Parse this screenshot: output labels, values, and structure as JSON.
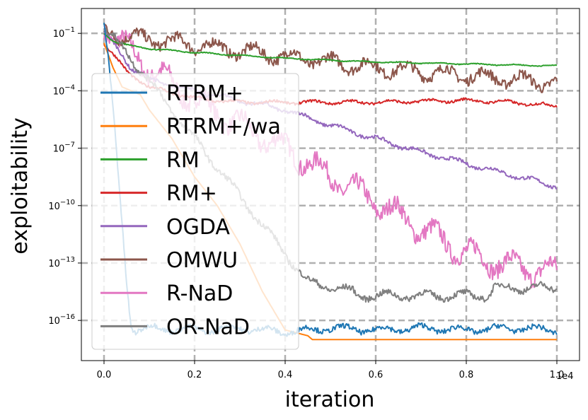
{
  "chart_data": {
    "type": "line",
    "title": "",
    "xlabel": "iteration",
    "ylabel": "exploitability",
    "x_offset_label": "1e4",
    "x_ticks": [
      {
        "value": 0,
        "label": "0.0"
      },
      {
        "value": 2000,
        "label": "0.2"
      },
      {
        "value": 4000,
        "label": "0.4"
      },
      {
        "value": 6000,
        "label": "0.6"
      },
      {
        "value": 8000,
        "label": "0.8"
      },
      {
        "value": 10000,
        "label": "1.0"
      }
    ],
    "y_scale": "log",
    "y_ticks": [
      {
        "exp": -1,
        "label": "10"
      },
      {
        "exp": -4,
        "label": "10"
      },
      {
        "exp": -7,
        "label": "10"
      },
      {
        "exp": -10,
        "label": "10"
      },
      {
        "exp": -13,
        "label": "10"
      },
      {
        "exp": -16,
        "label": "10"
      }
    ],
    "y_tick_exponents": [
      "−1",
      "−4",
      "−7",
      "−10",
      "−13",
      "−16"
    ],
    "xlim": [
      -500,
      10500
    ],
    "ylim_log10": [
      -18.1,
      0.3
    ],
    "grid": true,
    "legend_placement": "left",
    "series": [
      {
        "name": "RTRM+",
        "color": "#1f77b4",
        "points": [
          [
            0,
            -0.5
          ],
          [
            100,
            -2.5
          ],
          [
            200,
            -5
          ],
          [
            300,
            -8
          ],
          [
            400,
            -11
          ],
          [
            500,
            -14
          ],
          [
            600,
            -16.3
          ],
          [
            700,
            -16.5
          ],
          [
            1000,
            -16.4
          ],
          [
            2000,
            -16.5
          ],
          [
            3000,
            -16.4
          ],
          [
            4000,
            -16.6
          ],
          [
            5000,
            -16.4
          ],
          [
            6000,
            -16.5
          ],
          [
            7000,
            -16.4
          ],
          [
            8000,
            -16.5
          ],
          [
            9000,
            -16.4
          ],
          [
            10000,
            -16.5
          ]
        ],
        "noise": 0.3
      },
      {
        "name": "RTRM+/wa",
        "color": "#ff7f0e",
        "points": [
          [
            0,
            -1.5
          ],
          [
            200,
            -2.8
          ],
          [
            400,
            -3.8
          ],
          [
            800,
            -4.2
          ],
          [
            1000,
            -5
          ],
          [
            1500,
            -6.5
          ],
          [
            2000,
            -8.5
          ],
          [
            2500,
            -10
          ],
          [
            3000,
            -12
          ],
          [
            3500,
            -14.5
          ],
          [
            4000,
            -16.5
          ],
          [
            4500,
            -16.8
          ],
          [
            4600,
            -17
          ],
          [
            10000,
            -17
          ]
        ],
        "noise": 0
      },
      {
        "name": "RM",
        "color": "#2ca02c",
        "points": [
          [
            0,
            -1
          ],
          [
            200,
            -1.4
          ],
          [
            500,
            -1.6
          ],
          [
            1000,
            -1.8
          ],
          [
            2000,
            -2
          ],
          [
            4000,
            -2.3
          ],
          [
            6000,
            -2.5
          ],
          [
            8000,
            -2.6
          ],
          [
            10000,
            -2.7
          ]
        ],
        "noise": 0.05
      },
      {
        "name": "RM+",
        "color": "#d62728",
        "points": [
          [
            0,
            -1.5
          ],
          [
            500,
            -3
          ],
          [
            1000,
            -3.8
          ],
          [
            1500,
            -4.1
          ],
          [
            2000,
            -4.4
          ],
          [
            3000,
            -4.6
          ],
          [
            4000,
            -4.6
          ],
          [
            6000,
            -4.6
          ],
          [
            8000,
            -4.5
          ],
          [
            9000,
            -4.6
          ],
          [
            10000,
            -4.8
          ]
        ],
        "noise": 0.15
      },
      {
        "name": "OGDA",
        "color": "#9467bd",
        "points": [
          [
            0,
            -1
          ],
          [
            300,
            -1.8
          ],
          [
            600,
            -2.8
          ],
          [
            1000,
            -3.4
          ],
          [
            2000,
            -4
          ],
          [
            3000,
            -4.5
          ],
          [
            4000,
            -5
          ],
          [
            5000,
            -5.8
          ],
          [
            6000,
            -6.5
          ],
          [
            7000,
            -7.2
          ],
          [
            8000,
            -7.8
          ],
          [
            9000,
            -8.4
          ],
          [
            10000,
            -9
          ]
        ],
        "noise": 0.2
      },
      {
        "name": "OMWU",
        "color": "#8c564b",
        "points": [
          [
            0,
            -0.8
          ],
          [
            500,
            -1.2
          ],
          [
            1000,
            -1.3
          ],
          [
            2000,
            -1.6
          ],
          [
            3000,
            -1.9
          ],
          [
            4000,
            -2.2
          ],
          [
            6000,
            -2.8
          ],
          [
            8000,
            -3.2
          ],
          [
            10000,
            -3.6
          ]
        ],
        "noise": 0.6
      },
      {
        "name": "R-NaD",
        "color": "#e377c2",
        "points": [
          [
            0,
            -0.5
          ],
          [
            500,
            -1.8
          ],
          [
            1000,
            -2.8
          ],
          [
            2000,
            -4.5
          ],
          [
            3000,
            -5.8
          ],
          [
            4000,
            -7
          ],
          [
            5000,
            -8.5
          ],
          [
            6000,
            -9.8
          ],
          [
            7000,
            -11.2
          ],
          [
            8000,
            -12.5
          ],
          [
            9000,
            -13.2
          ],
          [
            10000,
            -13.5
          ]
        ],
        "noise": 1
      },
      {
        "name": "OR-NaD",
        "color": "#7f7f7f",
        "points": [
          [
            0,
            -0.7
          ],
          [
            500,
            -2
          ],
          [
            1000,
            -3.5
          ],
          [
            2000,
            -6.5
          ],
          [
            3000,
            -9.5
          ],
          [
            4000,
            -12.5
          ],
          [
            4500,
            -14
          ],
          [
            5500,
            -14.5
          ],
          [
            5600,
            -14.7
          ],
          [
            8500,
            -14.7
          ],
          [
            8600,
            -14.3
          ],
          [
            10000,
            -14.3
          ]
        ],
        "noise": 0.35
      }
    ]
  }
}
